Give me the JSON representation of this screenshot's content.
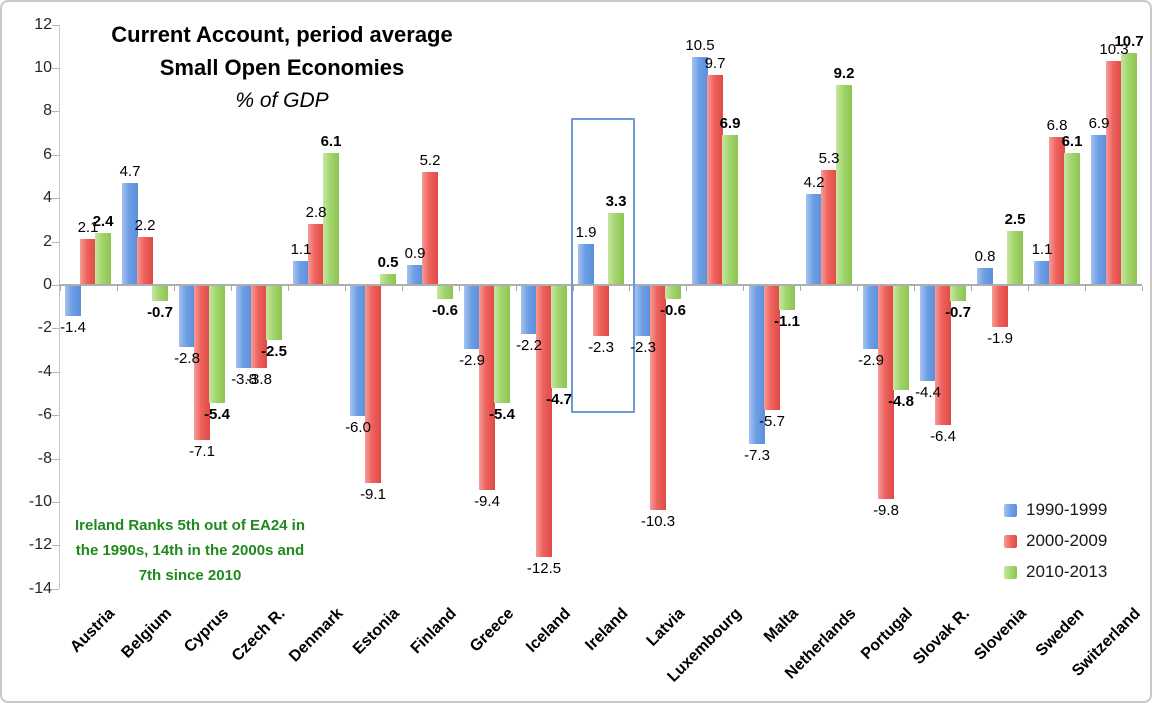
{
  "annotation": {
    "line1": "Ireland Ranks 5th out of EA24 in",
    "line2": "the 1990s, 14th in the 2000s and",
    "line3": "7th since 2010",
    "color": "#1e8a1e"
  },
  "chart_data": {
    "type": "bar",
    "title": "Current Account, period average",
    "subtitle": "Small Open Economies",
    "units": "% of GDP",
    "categories": [
      "Austria",
      "Belgium",
      "Cyprus",
      "Czech R.",
      "Denmark",
      "Estonia",
      "Finland",
      "Greece",
      "Iceland",
      "Ireland",
      "Latvia",
      "Luxembourg",
      "Malta",
      "Netherlands",
      "Portugal",
      "Slovak R.",
      "Slovenia",
      "Sweden",
      "Switzerland"
    ],
    "series": [
      {
        "name": "1990-1999",
        "color": "#6d9ee6",
        "color_light": "#a5c3f0",
        "color_dark": "#5c8ed9",
        "bold_labels": false,
        "values": [
          -1.4,
          4.7,
          -2.8,
          -3.8,
          1.1,
          -6.0,
          0.9,
          -2.9,
          -2.2,
          1.9,
          -2.3,
          10.5,
          -7.3,
          4.2,
          -2.9,
          -4.4,
          0.8,
          1.1,
          6.9
        ]
      },
      {
        "name": "2000-2009",
        "color": "#ee615c",
        "color_light": "#f59d98",
        "color_dark": "#de4b46",
        "bold_labels": false,
        "values": [
          2.1,
          2.2,
          -7.1,
          -3.8,
          2.8,
          -9.1,
          5.2,
          -9.4,
          -12.5,
          -2.3,
          -10.3,
          9.7,
          -5.7,
          5.3,
          -9.8,
          -6.4,
          -1.9,
          6.8,
          10.3
        ]
      },
      {
        "name": "2010-2013",
        "color": "#a3d56e",
        "color_light": "#c8e6a0",
        "color_dark": "#8cc451",
        "bold_labels": true,
        "values": [
          2.4,
          -0.7,
          -5.4,
          -2.5,
          6.1,
          0.5,
          -0.6,
          -5.4,
          -4.7,
          3.3,
          -0.6,
          6.9,
          -1.1,
          9.2,
          -4.8,
          -0.7,
          2.5,
          6.1,
          10.7
        ]
      }
    ],
    "ylim": [
      -14,
      12
    ],
    "ytick_step": 2,
    "grid": "zero-line-only",
    "legend_position": "right-lower",
    "highlight": {
      "category": "Ireland",
      "top_value": 7.7,
      "bottom_value": -5.7,
      "border_color": "#6b9bd2"
    }
  },
  "colors": {
    "axis_line": "#c6c6c6",
    "zero_line": "#aeaeae",
    "page_border": "#c9c9c9",
    "tick_label": "#262626"
  }
}
